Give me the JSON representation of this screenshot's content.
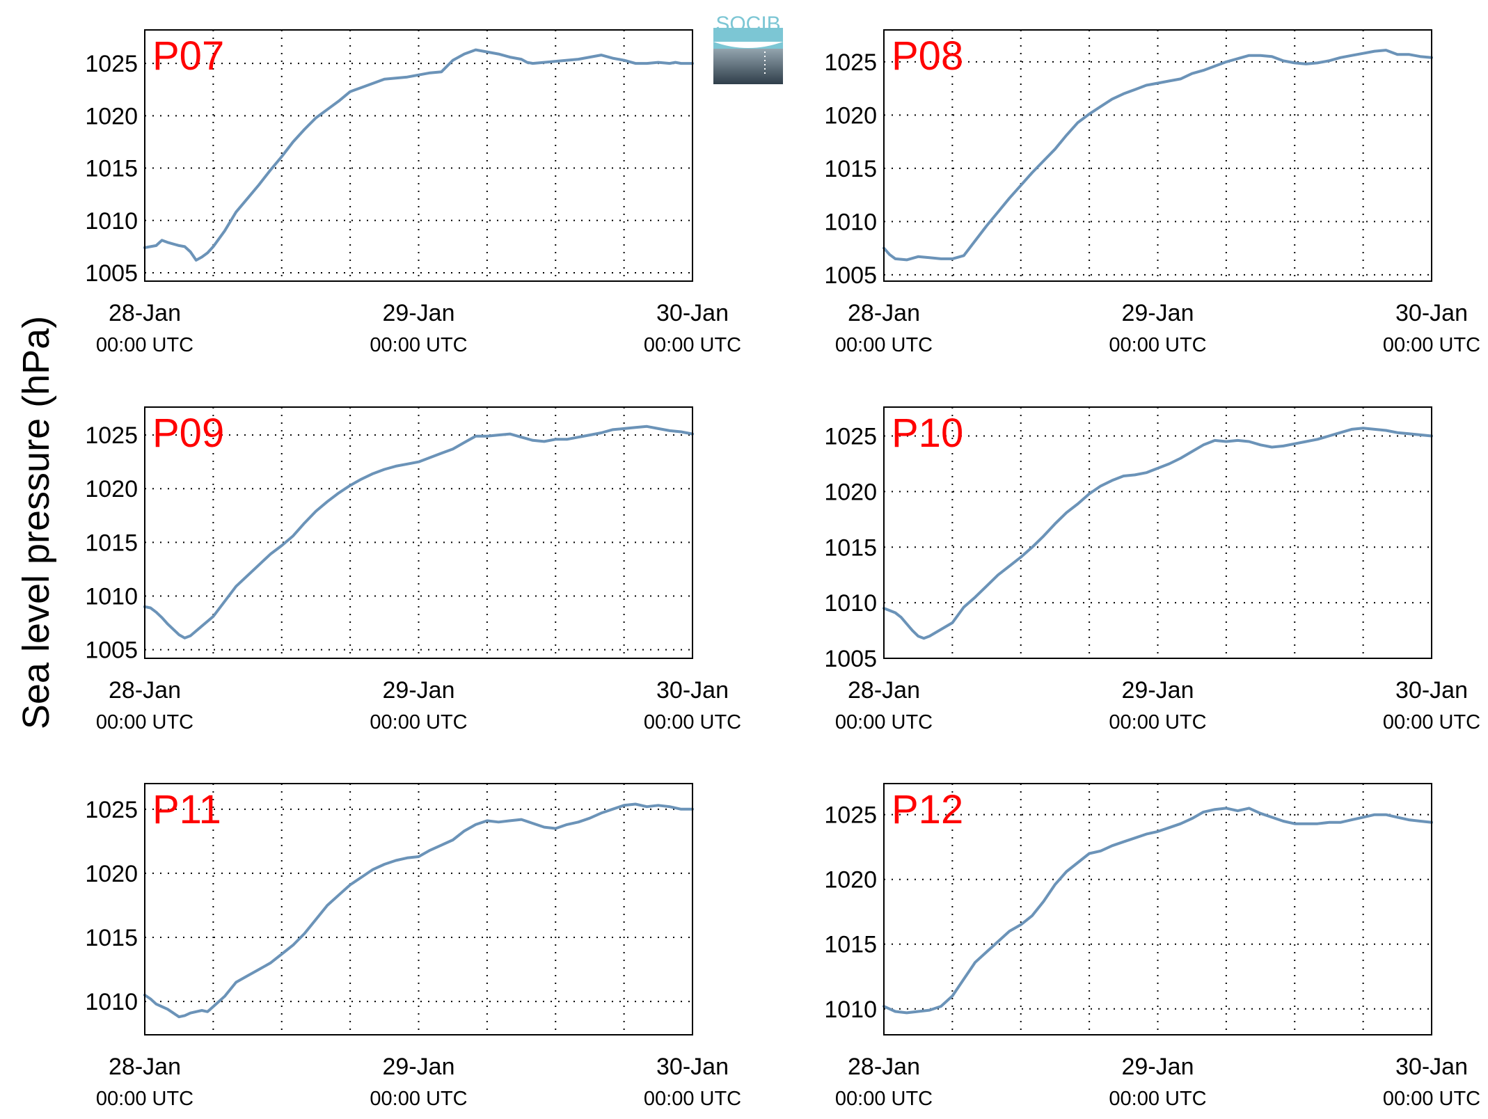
{
  "figure": {
    "ylabel": "Sea level pressure (hPa)",
    "logo_text": "SOCIB",
    "colors": {
      "line": "#6b93b8",
      "panel_label": "#ff0000",
      "grid": "#000000",
      "logo_top": "#7cc6d4",
      "logo_bottom": "#2f3e4a"
    },
    "x_axis": {
      "ticks": [
        {
          "date": "28-Jan",
          "time": "00:00 UTC",
          "hours": 0
        },
        {
          "date": "29-Jan",
          "time": "00:00 UTC",
          "hours": 24
        },
        {
          "date": "30-Jan",
          "time": "00:00 UTC",
          "hours": 48
        }
      ],
      "minor_grid_hours": [
        6,
        12,
        18,
        30,
        36,
        42
      ],
      "xlim_hours": [
        0,
        48
      ]
    }
  },
  "chart_data": [
    {
      "type": "line",
      "panel_label": "P07",
      "ylim": [
        1004.2,
        1028.2
      ],
      "yticks": [
        1005,
        1010,
        1015,
        1020,
        1025
      ],
      "grid": true,
      "series": [
        {
          "x_hours": [
            0,
            1,
            1.5,
            2,
            3,
            3.5,
            4,
            4.5,
            5,
            5.5,
            6,
            7,
            8,
            9,
            10,
            11,
            12,
            13,
            14,
            15,
            16,
            17,
            18,
            19,
            20,
            21,
            22,
            23,
            24,
            25,
            26,
            27,
            28,
            29,
            30,
            31,
            32,
            33,
            33.5,
            34,
            35,
            36,
            37,
            38,
            39,
            40,
            41,
            42,
            43,
            44,
            45,
            46,
            46.5,
            47,
            48
          ],
          "y": [
            1007.4,
            1007.6,
            1008.1,
            1007.9,
            1007.6,
            1007.5,
            1007.0,
            1006.2,
            1006.5,
            1006.9,
            1007.5,
            1009.0,
            1010.8,
            1012.1,
            1013.4,
            1014.8,
            1016.1,
            1017.5,
            1018.7,
            1019.8,
            1020.6,
            1021.4,
            1022.3,
            1022.7,
            1023.1,
            1023.5,
            1023.6,
            1023.7,
            1023.9,
            1024.1,
            1024.2,
            1025.3,
            1025.9,
            1026.3,
            1026.1,
            1025.9,
            1025.6,
            1025.4,
            1025.1,
            1025.0,
            1025.1,
            1025.2,
            1025.3,
            1025.4,
            1025.6,
            1025.8,
            1025.5,
            1025.3,
            1025.0,
            1025.0,
            1025.1,
            1025.0,
            1025.1,
            1025.0,
            1025.0
          ]
        }
      ]
    },
    {
      "type": "line",
      "panel_label": "P08",
      "ylim": [
        1004.4,
        1028.0
      ],
      "yticks": [
        1005,
        1010,
        1015,
        1020,
        1025
      ],
      "grid": true,
      "series": [
        {
          "x_hours": [
            0,
            0.5,
            1,
            2,
            3,
            4,
            5,
            6,
            7,
            8,
            9,
            10,
            11,
            12,
            13,
            14,
            15,
            16,
            17,
            18,
            19,
            20,
            21,
            22,
            23,
            24,
            25,
            26,
            27,
            28,
            29,
            30,
            31,
            32,
            33,
            34,
            35,
            36,
            37,
            38,
            39,
            40,
            41,
            42,
            43,
            44,
            45,
            46,
            46.5,
            47,
            48
          ],
          "y": [
            1007.5,
            1006.9,
            1006.5,
            1006.4,
            1006.7,
            1006.6,
            1006.5,
            1006.5,
            1006.8,
            1008.2,
            1009.6,
            1010.9,
            1012.2,
            1013.4,
            1014.6,
            1015.7,
            1016.8,
            1018.1,
            1019.3,
            1020.1,
            1020.8,
            1021.5,
            1022.0,
            1022.4,
            1022.8,
            1023.0,
            1023.2,
            1023.4,
            1023.9,
            1024.2,
            1024.6,
            1025.0,
            1025.3,
            1025.6,
            1025.6,
            1025.5,
            1025.1,
            1024.9,
            1024.8,
            1024.9,
            1025.1,
            1025.4,
            1025.6,
            1025.8,
            1026.0,
            1026.1,
            1025.7,
            1025.7,
            1025.6,
            1025.5,
            1025.4
          ]
        }
      ]
    },
    {
      "type": "line",
      "panel_label": "P09",
      "ylim": [
        1004.2,
        1027.6
      ],
      "yticks": [
        1005,
        1010,
        1015,
        1020,
        1025
      ],
      "grid": true,
      "series": [
        {
          "x_hours": [
            0,
            0.5,
            1,
            1.5,
            2,
            2.5,
            3,
            3.5,
            4,
            5,
            6,
            7,
            8,
            9,
            10,
            11,
            12,
            13,
            14,
            15,
            16,
            17,
            18,
            19,
            20,
            21,
            22,
            23,
            24,
            25,
            26,
            27,
            28,
            29,
            30,
            31,
            32,
            33,
            34,
            35,
            36,
            37,
            38,
            39,
            40,
            41,
            42,
            43,
            44,
            45,
            46,
            47,
            48
          ],
          "y": [
            1009.0,
            1008.9,
            1008.5,
            1008.0,
            1007.4,
            1006.9,
            1006.4,
            1006.1,
            1006.3,
            1007.2,
            1008.1,
            1009.5,
            1010.9,
            1011.9,
            1012.9,
            1013.9,
            1014.7,
            1015.6,
            1016.8,
            1017.9,
            1018.8,
            1019.6,
            1020.3,
            1020.9,
            1021.4,
            1021.8,
            1022.1,
            1022.3,
            1022.5,
            1022.9,
            1023.3,
            1023.7,
            1024.3,
            1024.9,
            1024.9,
            1025.0,
            1025.1,
            1024.8,
            1024.5,
            1024.4,
            1024.6,
            1024.6,
            1024.8,
            1025.0,
            1025.2,
            1025.5,
            1025.6,
            1025.7,
            1025.8,
            1025.6,
            1025.4,
            1025.3,
            1025.1
          ]
        }
      ]
    },
    {
      "type": "line",
      "panel_label": "P10",
      "ylim": [
        1005.0,
        1027.6
      ],
      "yticks": [
        1005,
        1010,
        1015,
        1020,
        1025
      ],
      "grid": true,
      "series": [
        {
          "x_hours": [
            0,
            0.5,
            1,
            1.5,
            2,
            2.5,
            3,
            3.5,
            4,
            5,
            6,
            7,
            8,
            9,
            10,
            11,
            12,
            13,
            14,
            15,
            16,
            17,
            18,
            19,
            20,
            21,
            22,
            23,
            24,
            25,
            26,
            27,
            28,
            29,
            30,
            31,
            32,
            33,
            34,
            35,
            36,
            37,
            38,
            39,
            40,
            41,
            42,
            43,
            44,
            45,
            46,
            47,
            48
          ],
          "y": [
            1009.5,
            1009.3,
            1009.1,
            1008.7,
            1008.1,
            1007.5,
            1007.0,
            1006.8,
            1007.0,
            1007.6,
            1008.2,
            1009.6,
            1010.5,
            1011.5,
            1012.5,
            1013.3,
            1014.1,
            1015.0,
            1016.0,
            1017.1,
            1018.1,
            1018.9,
            1019.8,
            1020.5,
            1021.0,
            1021.4,
            1021.5,
            1021.7,
            1022.1,
            1022.5,
            1023.0,
            1023.6,
            1024.2,
            1024.6,
            1024.5,
            1024.6,
            1024.5,
            1024.2,
            1024.0,
            1024.1,
            1024.3,
            1024.5,
            1024.7,
            1025.0,
            1025.3,
            1025.6,
            1025.7,
            1025.6,
            1025.5,
            1025.3,
            1025.2,
            1025.1,
            1025.0
          ]
        }
      ]
    },
    {
      "type": "line",
      "panel_label": "P11",
      "ylim": [
        1007.4,
        1027.0
      ],
      "yticks": [
        1010,
        1015,
        1020,
        1025
      ],
      "grid": true,
      "series": [
        {
          "x_hours": [
            0,
            0.5,
            1,
            1.5,
            2,
            2.5,
            3,
            3.5,
            4,
            4.5,
            5,
            5.5,
            6,
            7,
            8,
            9,
            10,
            11,
            12,
            13,
            14,
            15,
            16,
            17,
            18,
            19,
            20,
            21,
            22,
            23,
            24,
            25,
            26,
            27,
            28,
            29,
            30,
            31,
            32,
            33,
            34,
            35,
            36,
            37,
            38,
            39,
            40,
            41,
            42,
            43,
            44,
            45,
            46,
            47,
            48
          ],
          "y": [
            1010.5,
            1010.2,
            1009.8,
            1009.6,
            1009.4,
            1009.1,
            1008.8,
            1008.9,
            1009.1,
            1009.2,
            1009.3,
            1009.2,
            1009.6,
            1010.4,
            1011.5,
            1012.0,
            1012.5,
            1013.0,
            1013.7,
            1014.4,
            1015.3,
            1016.4,
            1017.5,
            1018.3,
            1019.1,
            1019.7,
            1020.3,
            1020.7,
            1021.0,
            1021.2,
            1021.3,
            1021.8,
            1022.2,
            1022.6,
            1023.3,
            1023.8,
            1024.1,
            1024.0,
            1024.1,
            1024.2,
            1023.9,
            1023.6,
            1023.5,
            1023.8,
            1024.0,
            1024.3,
            1024.7,
            1025.0,
            1025.3,
            1025.4,
            1025.2,
            1025.3,
            1025.2,
            1025.0,
            1025.0
          ]
        }
      ]
    },
    {
      "type": "line",
      "panel_label": "P12",
      "ylim": [
        1008.0,
        1027.4
      ],
      "yticks": [
        1010,
        1015,
        1020,
        1025
      ],
      "grid": true,
      "series": [
        {
          "x_hours": [
            0,
            0.5,
            1,
            2,
            3,
            4,
            5,
            6,
            7,
            8,
            9,
            10,
            11,
            12,
            13,
            14,
            15,
            16,
            17,
            18,
            19,
            20,
            21,
            22,
            23,
            24,
            25,
            26,
            27,
            28,
            29,
            30,
            31,
            32,
            33,
            34,
            35,
            36,
            37,
            38,
            39,
            40,
            41,
            42,
            43,
            44,
            45,
            46,
            47,
            48
          ],
          "y": [
            1010.2,
            1010.0,
            1009.8,
            1009.7,
            1009.8,
            1009.9,
            1010.2,
            1011.0,
            1012.3,
            1013.6,
            1014.4,
            1015.2,
            1016.0,
            1016.5,
            1017.2,
            1018.3,
            1019.6,
            1020.6,
            1021.3,
            1022.0,
            1022.2,
            1022.6,
            1022.9,
            1023.2,
            1023.5,
            1023.7,
            1024.0,
            1024.3,
            1024.7,
            1025.2,
            1025.4,
            1025.5,
            1025.3,
            1025.5,
            1025.1,
            1024.8,
            1024.5,
            1024.3,
            1024.3,
            1024.3,
            1024.4,
            1024.4,
            1024.6,
            1024.8,
            1025.0,
            1025.0,
            1024.8,
            1024.6,
            1024.5,
            1024.4
          ]
        }
      ]
    }
  ]
}
